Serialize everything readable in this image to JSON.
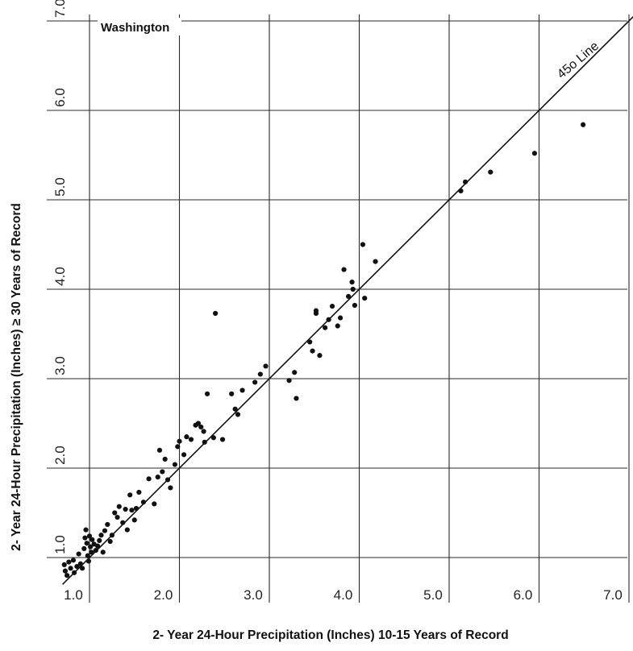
{
  "chart_data": {
    "type": "scatter",
    "panel_label": "Washington",
    "xlabel": "2- Year 24-Hour Precipitation (Inches) 10-15 Years of Record",
    "ylabel": "2- Year 24-Hour Precipitation (Inches) ≥ 30 Years of Record",
    "xlim": [
      0.7,
      7.2
    ],
    "ylim": [
      0.5,
      7.0
    ],
    "x_ticks": [
      1.0,
      2.0,
      3.0,
      4.0,
      5.0,
      6.0,
      7.0
    ],
    "x_tick_labels": [
      "1.0",
      "2.0",
      "3.0",
      "4.0",
      "5.0",
      "6.0",
      "7.0"
    ],
    "y_ticks": [
      1.0,
      2.0,
      3.0,
      4.0,
      5.0,
      6.0,
      7.0
    ],
    "y_tick_labels": [
      "1.0",
      "2.0",
      "3.0",
      "4.0",
      "5.0",
      "6.0",
      "7.0"
    ],
    "grid": true,
    "reference_line": {
      "label": "45o Line",
      "slope": 1,
      "intercept": 0
    },
    "points": [
      [
        0.72,
        0.92
      ],
      [
        0.73,
        0.85
      ],
      [
        0.75,
        0.8
      ],
      [
        0.77,
        0.95
      ],
      [
        0.79,
        0.88
      ],
      [
        0.82,
        0.97
      ],
      [
        0.83,
        0.83
      ],
      [
        0.86,
        0.9
      ],
      [
        0.88,
        1.04
      ],
      [
        0.9,
        0.93
      ],
      [
        0.92,
        0.88
      ],
      [
        0.94,
        1.1
      ],
      [
        0.95,
        1.22
      ],
      [
        0.96,
        1.31
      ],
      [
        0.97,
        1.16
      ],
      [
        0.98,
        1.02
      ],
      [
        0.99,
        0.96
      ],
      [
        1.0,
        1.24
      ],
      [
        1.01,
        1.12
      ],
      [
        1.02,
        1.06
      ],
      [
        1.03,
        1.2
      ],
      [
        1.05,
        1.15
      ],
      [
        1.07,
        1.08
      ],
      [
        1.09,
        1.13
      ],
      [
        1.11,
        1.19
      ],
      [
        1.13,
        1.25
      ],
      [
        1.15,
        1.06
      ],
      [
        1.17,
        1.3
      ],
      [
        1.2,
        1.37
      ],
      [
        1.23,
        1.18
      ],
      [
        1.25,
        1.25
      ],
      [
        1.28,
        1.5
      ],
      [
        1.31,
        1.45
      ],
      [
        1.33,
        1.57
      ],
      [
        1.37,
        1.39
      ],
      [
        1.4,
        1.54
      ],
      [
        1.42,
        1.31
      ],
      [
        1.45,
        1.7
      ],
      [
        1.47,
        1.53
      ],
      [
        1.5,
        1.42
      ],
      [
        1.52,
        1.55
      ],
      [
        1.55,
        1.73
      ],
      [
        1.6,
        1.62
      ],
      [
        1.66,
        1.88
      ],
      [
        1.72,
        1.6
      ],
      [
        1.76,
        1.9
      ],
      [
        1.78,
        2.2
      ],
      [
        1.81,
        1.96
      ],
      [
        1.84,
        2.1
      ],
      [
        1.87,
        1.87
      ],
      [
        1.9,
        1.78
      ],
      [
        1.95,
        2.04
      ],
      [
        1.98,
        2.24
      ],
      [
        2.0,
        2.3
      ],
      [
        2.05,
        2.15
      ],
      [
        2.08,
        2.35
      ],
      [
        2.13,
        2.32
      ],
      [
        2.18,
        2.48
      ],
      [
        2.21,
        2.5
      ],
      [
        2.24,
        2.46
      ],
      [
        2.27,
        2.41
      ],
      [
        2.28,
        2.29
      ],
      [
        2.31,
        2.83
      ],
      [
        2.38,
        2.34
      ],
      [
        2.4,
        3.73
      ],
      [
        2.48,
        2.32
      ],
      [
        2.58,
        2.83
      ],
      [
        2.62,
        2.66
      ],
      [
        2.65,
        2.6
      ],
      [
        2.7,
        2.87
      ],
      [
        2.84,
        2.96
      ],
      [
        2.9,
        3.05
      ],
      [
        2.96,
        3.14
      ],
      [
        3.22,
        2.98
      ],
      [
        3.28,
        3.07
      ],
      [
        3.3,
        2.78
      ],
      [
        3.45,
        3.41
      ],
      [
        3.48,
        3.31
      ],
      [
        3.52,
        3.76
      ],
      [
        3.52,
        3.73
      ],
      [
        3.56,
        3.26
      ],
      [
        3.62,
        3.57
      ],
      [
        3.66,
        3.66
      ],
      [
        3.7,
        3.81
      ],
      [
        3.76,
        3.59
      ],
      [
        3.79,
        3.68
      ],
      [
        3.83,
        4.22
      ],
      [
        3.88,
        3.92
      ],
      [
        3.92,
        4.08
      ],
      [
        3.93,
        4.0
      ],
      [
        3.95,
        3.82
      ],
      [
        4.04,
        4.5
      ],
      [
        4.06,
        3.9
      ],
      [
        4.18,
        4.31
      ],
      [
        5.13,
        5.1
      ],
      [
        5.18,
        5.2
      ],
      [
        5.46,
        5.31
      ],
      [
        5.95,
        5.52
      ],
      [
        6.49,
        5.84
      ]
    ]
  }
}
